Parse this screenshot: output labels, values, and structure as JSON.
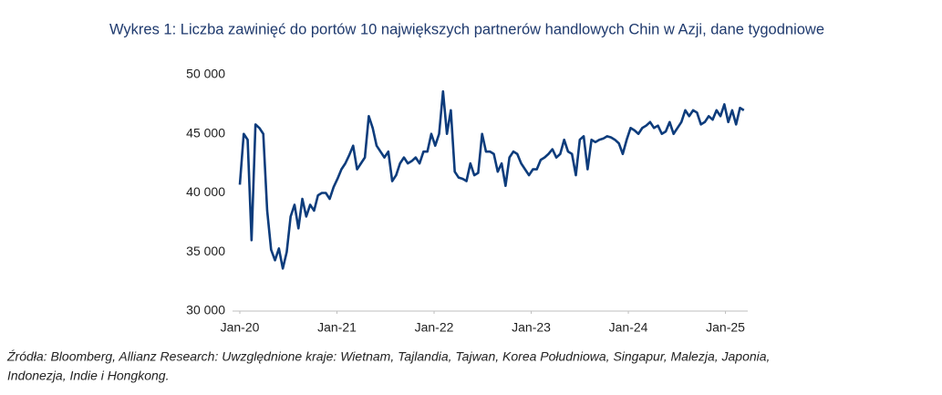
{
  "chart_data": {
    "type": "line",
    "title": "Wykres 1: Liczba zawinięć do portów 10 największych partnerów handlowych Chin w Azji, dane tygodniowe",
    "footnote": [
      "Źródła: Bloomberg, Allianz Research: Uwzględnione kraje: Wietnam, Tajlandia, Tajwan, Korea Południowa, Singapur, Malezja, Japonia,",
      "Indonezja, Indie i Hongkong."
    ],
    "x": [
      0,
      2.1,
      4.2,
      6.3,
      8.4,
      10.5,
      12.6,
      14.7,
      16.8,
      18.9,
      21,
      23.1,
      25.2,
      27.3,
      29.4,
      31.5,
      33.6,
      35.7,
      37.8,
      39.9,
      42,
      44.1,
      46.2,
      48.3,
      50.4,
      52.5,
      54.6,
      56.7,
      58.8,
      60.9,
      63,
      65.1,
      67.2,
      69.3,
      71.4,
      73.5,
      75.6,
      77.7,
      79.8,
      81.9,
      84,
      86.1,
      88.2,
      90.3,
      92.4,
      94.5,
      96.6,
      98.7,
      100.8,
      102.9,
      105,
      107.1,
      109.2,
      111.3,
      113.4,
      115.5,
      117.6,
      119.7,
      121.8,
      123.9,
      126,
      128.1,
      130.2,
      132.3,
      134.4,
      136.5,
      138.6,
      140.7,
      142.8,
      144.9,
      147,
      149.1,
      151.2,
      153.3,
      155.4,
      157.5,
      159.6,
      161.7,
      163.8,
      165.9,
      168,
      170.1,
      172.2,
      174.3,
      176.4,
      178.5,
      180.6,
      182.7,
      184.8,
      186.9,
      189,
      191.1,
      193.2,
      195.3,
      197.4,
      199.5,
      201.6,
      203.7,
      205.8,
      207.9,
      210,
      212.1,
      214.2,
      216.3,
      218.4,
      220.5,
      222.6,
      224.7,
      226.8,
      228.9,
      231,
      233.1,
      235.2,
      237.3,
      239.4,
      241.5,
      243.6,
      245.7,
      247.8,
      249.9,
      252,
      254.1,
      256.2,
      258.3,
      260.4,
      262.5,
      264.6,
      266.7,
      268.8,
      270.9
    ],
    "series": [
      {
        "color": "#0d3c7c",
        "values": [
          40700,
          45000,
          44500,
          36000,
          45800,
          45500,
          45000,
          38500,
          35200,
          34300,
          35300,
          33600,
          35000,
          38000,
          39000,
          37000,
          39500,
          38000,
          39000,
          38500,
          39800,
          40000,
          40000,
          39500,
          40500,
          41200,
          42000,
          42500,
          43200,
          44000,
          42000,
          42500,
          43000,
          46500,
          45500,
          44000,
          43500,
          43000,
          43500,
          41000,
          41500,
          42500,
          43000,
          42500,
          42700,
          43000,
          42500,
          43500,
          43500,
          45000,
          44000,
          45000,
          48600,
          45000,
          47000,
          41800,
          41300,
          41200,
          41000,
          42500,
          41500,
          41700,
          45000,
          43500,
          43500,
          43300,
          41800,
          42500,
          40600,
          43000,
          43500,
          43300,
          42500,
          42000,
          41500,
          42000,
          42000,
          42800,
          43000,
          43300,
          43700,
          43000,
          43300,
          44500,
          43500,
          43300,
          41500,
          44500,
          44800,
          42000,
          44500,
          44300,
          44500,
          44600,
          44800,
          44700,
          44500,
          44200,
          43300,
          44500,
          45500,
          45300,
          45000,
          45500,
          45700,
          46000,
          45500,
          45700,
          45000,
          45200,
          46000,
          45000,
          45500,
          46000,
          47000,
          46500,
          47000,
          46800,
          45800,
          46000,
          46500,
          46200,
          47000,
          46500,
          47500,
          46000,
          47000,
          45800,
          47200,
          47000
        ]
      }
    ],
    "xlim": [
      0,
      272
    ],
    "xticks": [
      {
        "value": 0,
        "label": "Jan-20"
      },
      {
        "value": 52.2,
        "label": "Jan-21"
      },
      {
        "value": 104.4,
        "label": "Jan-22"
      },
      {
        "value": 156.6,
        "label": "Jan-23"
      },
      {
        "value": 208.8,
        "label": "Jan-24"
      },
      {
        "value": 261,
        "label": "Jan-25"
      }
    ],
    "ylim": [
      30000,
      50000
    ],
    "yticks": [
      {
        "value": 30000,
        "label": "30 000"
      },
      {
        "value": 35000,
        "label": "35 000"
      },
      {
        "value": 40000,
        "label": "40 000"
      },
      {
        "value": 45000,
        "label": "45 000"
      },
      {
        "value": 50000,
        "label": "50 000"
      }
    ]
  }
}
